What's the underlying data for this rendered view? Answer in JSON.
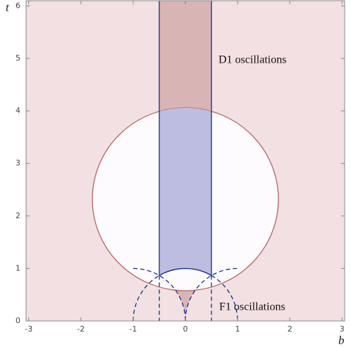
{
  "chart_data": {
    "type": "region",
    "xlabel": "b",
    "ylabel": "t",
    "annotations": [
      "D1 oscillations",
      "F1 oscillations"
    ],
    "xlim": [
      -3.05,
      3.05
    ],
    "ylim": [
      0,
      6.1
    ],
    "xticks": [
      -3,
      -2,
      -1,
      0,
      1,
      2,
      3
    ],
    "yticks": [
      0,
      1,
      2,
      3,
      4,
      5,
      6
    ],
    "grid": false
  }
}
